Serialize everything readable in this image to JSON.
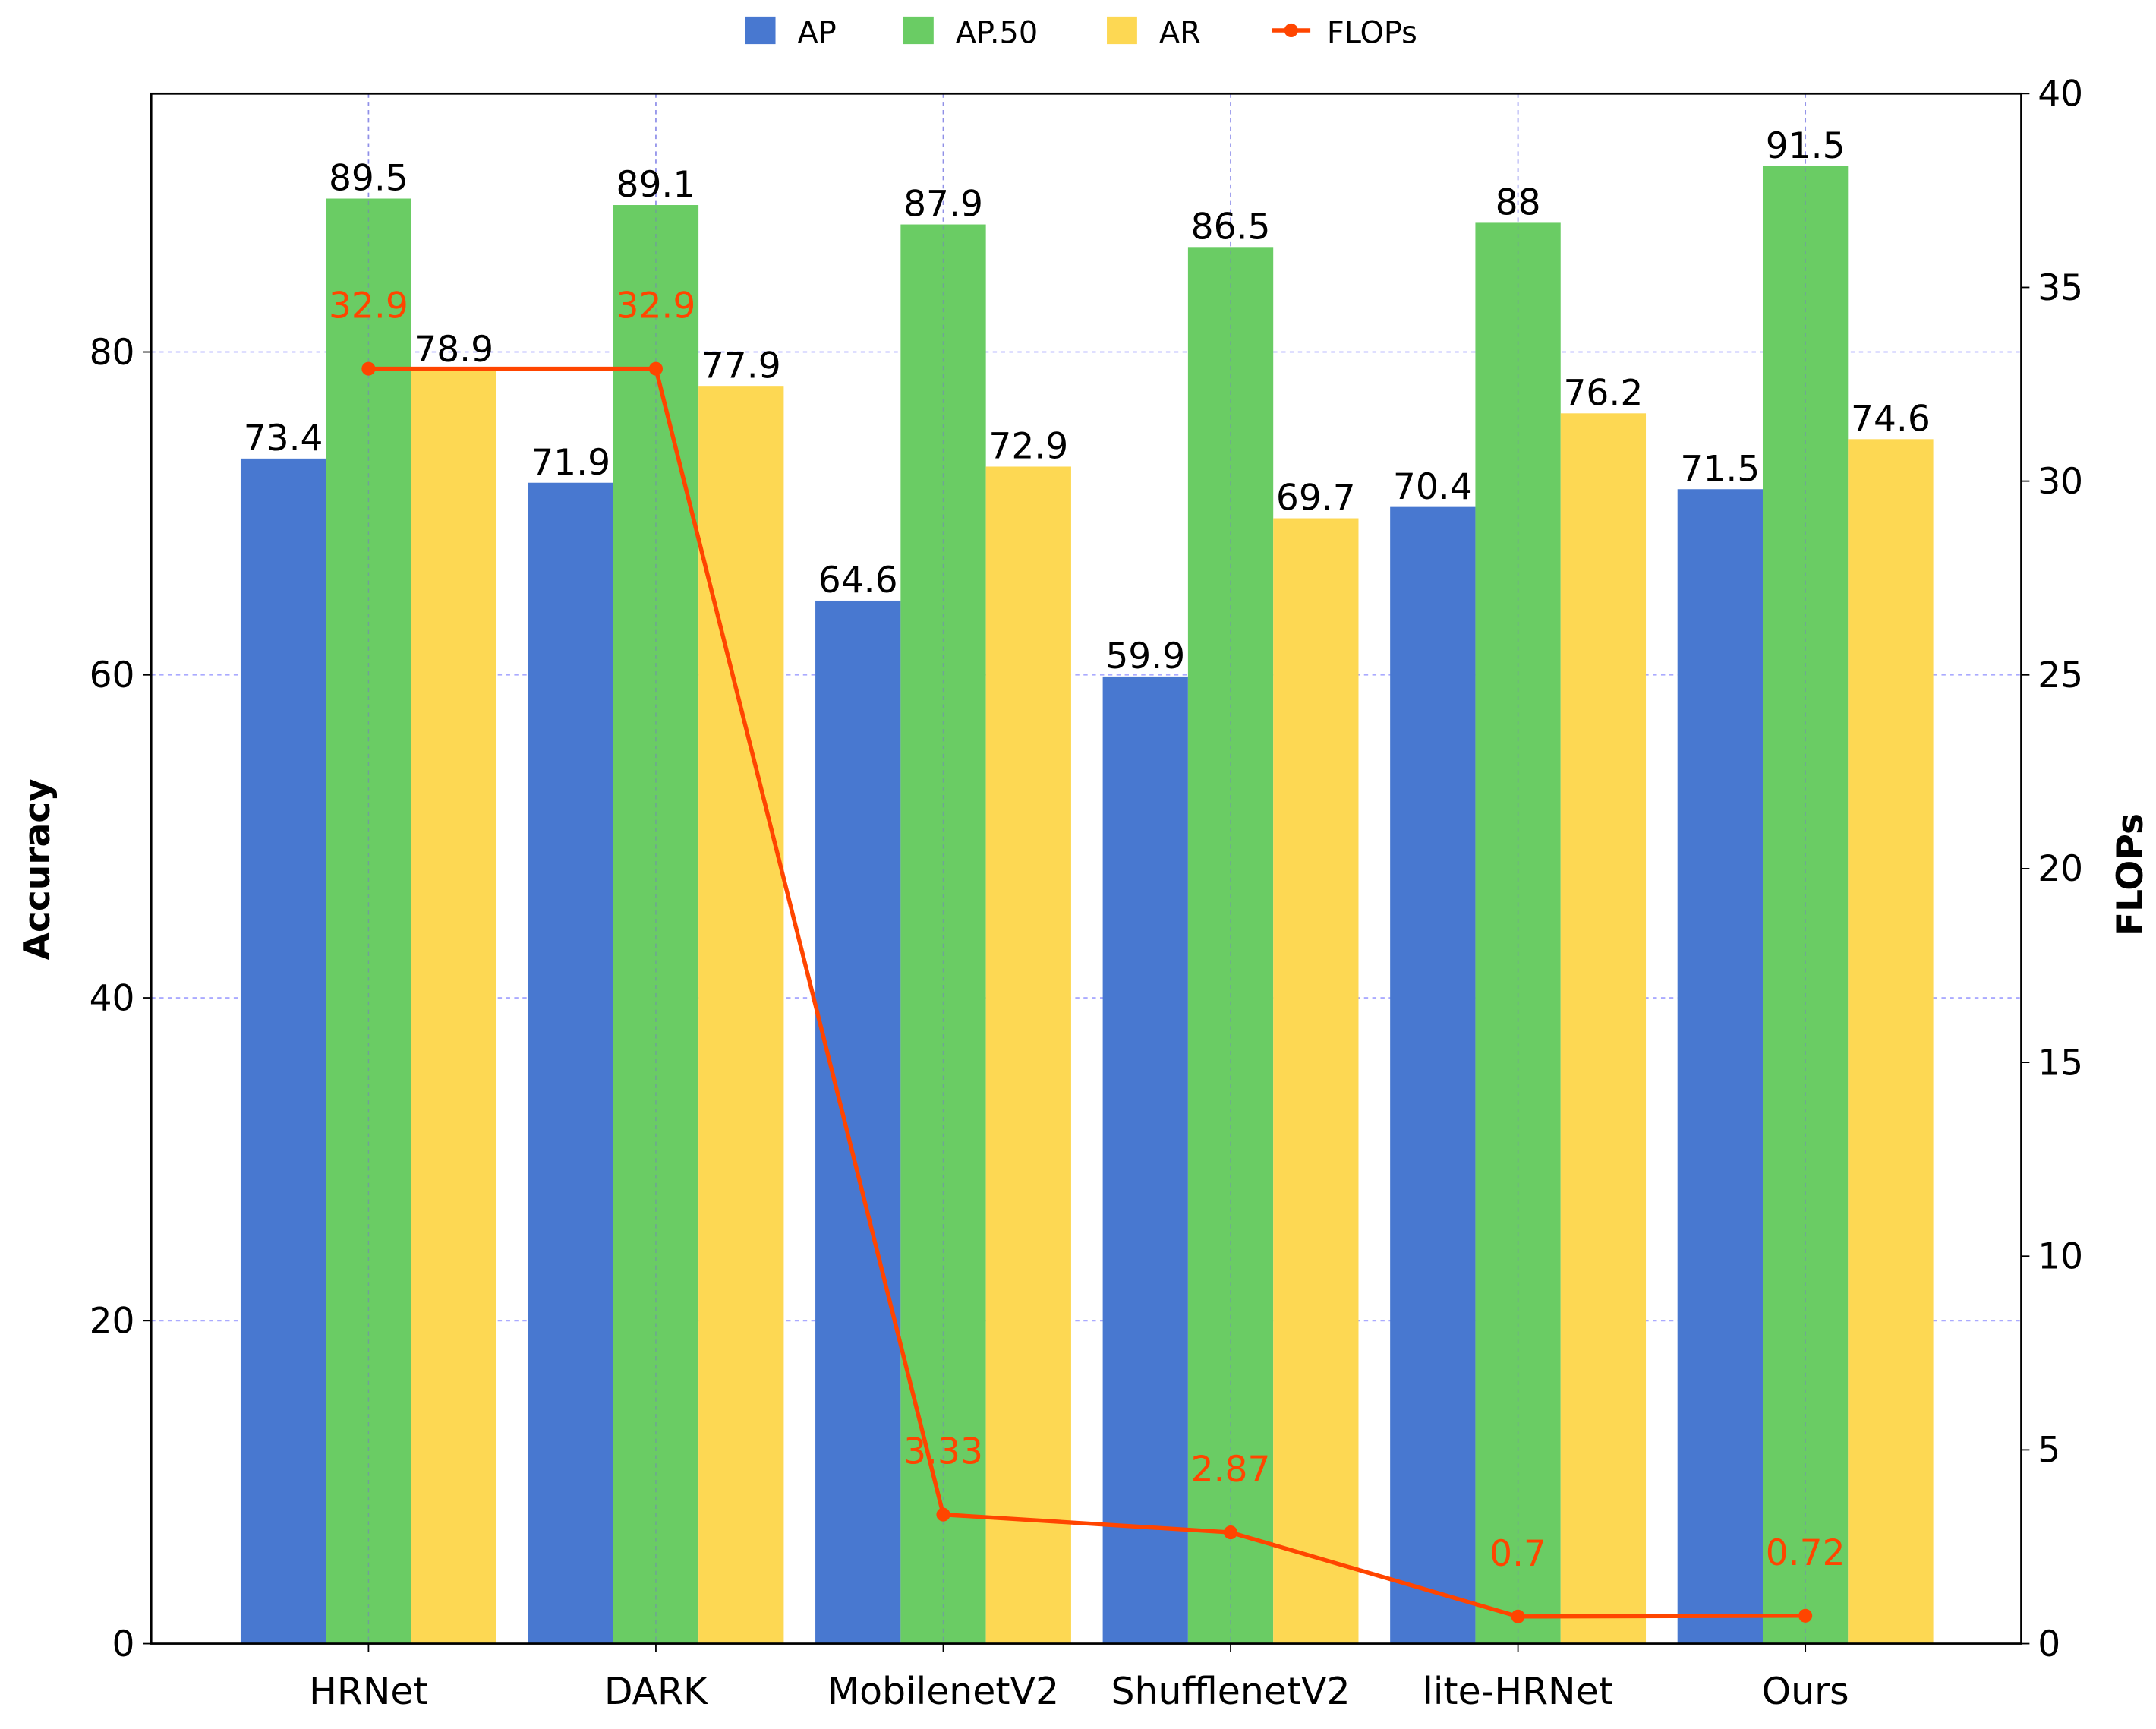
{
  "chart_data": {
    "type": "bar",
    "categories": [
      "HRNet",
      "DARK",
      "MobilenetV2",
      "ShufflenetV2",
      "lite-HRNet",
      "Ours"
    ],
    "series": [
      {
        "name": "AP",
        "type": "bar",
        "axis": "left",
        "color": "#4878d0",
        "values": [
          73.4,
          71.9,
          64.6,
          59.9,
          70.4,
          71.5
        ],
        "labels": [
          "73.4",
          "71.9",
          "64.6",
          "59.9",
          "70.4",
          "71.5"
        ]
      },
      {
        "name": "AP.50",
        "type": "bar",
        "axis": "left",
        "color": "#6acc64",
        "values": [
          89.5,
          89.1,
          87.9,
          86.5,
          88,
          91.5
        ],
        "labels": [
          "89.5",
          "89.1",
          "87.9",
          "86.5",
          "88",
          "91.5"
        ]
      },
      {
        "name": "AR",
        "type": "bar",
        "axis": "left",
        "color": "#fdd853",
        "values": [
          78.9,
          77.9,
          72.9,
          69.7,
          76.2,
          74.6
        ],
        "labels": [
          "78.9",
          "77.9",
          "72.9",
          "69.7",
          "76.2",
          "74.6"
        ]
      },
      {
        "name": "FLOPs",
        "type": "line",
        "axis": "right",
        "color": "#ff4500",
        "values": [
          32.9,
          32.9,
          3.33,
          2.87,
          0.7,
          0.72
        ],
        "labels": [
          "32.9",
          "32.9",
          "3.33",
          "2.87",
          "0.7",
          "0.72"
        ]
      }
    ],
    "ylabel": "Accuracy",
    "y2label": "FLOPs",
    "ylim": [
      0,
      96
    ],
    "y2lim": [
      0,
      40
    ],
    "yticks": [
      "0",
      "20",
      "40",
      "60",
      "80"
    ],
    "y2ticks": [
      "0",
      "5",
      "10",
      "15",
      "20",
      "25",
      "30",
      "35",
      "40"
    ],
    "grid": true,
    "legend_position": "top-center"
  }
}
